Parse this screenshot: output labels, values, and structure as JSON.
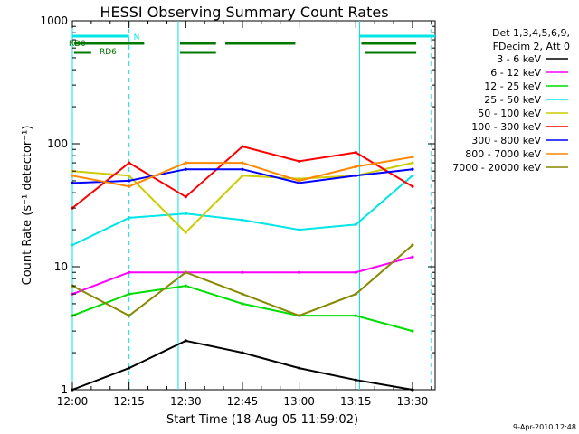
{
  "chart_data": {
    "type": "line",
    "title": "HESSI Observing Summary Count Rates",
    "xlabel": "Start Time (18-Aug-05 11:59:02)",
    "ylabel": "Count Rate (s⁻¹ detector⁻¹)",
    "y_scale": "log",
    "ylim": [
      1,
      1000
    ],
    "xlim": [
      "12:00",
      "13:36"
    ],
    "x_ticks": [
      "12:00",
      "12:15",
      "12:30",
      "12:45",
      "13:00",
      "13:15",
      "13:30"
    ],
    "y_ticks": [
      "1",
      "10",
      "100",
      "1000"
    ],
    "legend_position": "top-right",
    "legend_header": [
      "Det 1,3,4,5,6,9,",
      "FDecim 2, Att 0"
    ],
    "flag_labels": [
      "N",
      "RD0",
      "RD6"
    ],
    "timestamp": "9-Apr-2010 12:48",
    "series": [
      {
        "name": "3 - 6 keV",
        "color": "#000000",
        "x": [
          "12:00",
          "12:15",
          "12:30",
          "12:45",
          "13:00",
          "13:15",
          "13:30"
        ],
        "values": [
          1,
          1.5,
          2.5,
          2,
          1.5,
          1.2,
          1
        ]
      },
      {
        "name": "6 - 12 keV",
        "color": "#ff00ff",
        "x": [
          "12:00",
          "12:15",
          "12:30",
          "12:45",
          "13:00",
          "13:15",
          "13:30"
        ],
        "values": [
          6,
          9,
          9,
          9,
          9,
          9,
          12
        ]
      },
      {
        "name": "12 - 25 keV",
        "color": "#00dd00",
        "x": [
          "12:00",
          "12:15",
          "12:30",
          "12:45",
          "13:00",
          "13:15",
          "13:30"
        ],
        "values": [
          4,
          6,
          7,
          5,
          4,
          4,
          3
        ]
      },
      {
        "name": "25 - 50 keV",
        "color": "#00e5e5",
        "x": [
          "12:00",
          "12:15",
          "12:30",
          "12:45",
          "13:00",
          "13:15",
          "13:30"
        ],
        "values": [
          15,
          25,
          27,
          24,
          20,
          22,
          55
        ]
      },
      {
        "name": "50 - 100 keV",
        "color": "#cccc00",
        "x": [
          "12:00",
          "12:15",
          "12:30",
          "12:45",
          "13:00",
          "13:15",
          "13:30"
        ],
        "values": [
          60,
          55,
          19,
          55,
          52,
          55,
          70
        ]
      },
      {
        "name": "100 - 300 keV",
        "color": "#ff0000",
        "x": [
          "12:00",
          "12:15",
          "12:30",
          "12:45",
          "13:00",
          "13:15",
          "13:30"
        ],
        "values": [
          30,
          70,
          37,
          95,
          72,
          85,
          45
        ]
      },
      {
        "name": "300 - 800 keV",
        "color": "#0000ff",
        "x": [
          "12:00",
          "12:15",
          "12:30",
          "12:45",
          "13:00",
          "13:15",
          "13:30"
        ],
        "values": [
          48,
          50,
          62,
          62,
          48,
          55,
          62
        ]
      },
      {
        "name": "800 - 7000 keV",
        "color": "#ff8800",
        "x": [
          "12:00",
          "12:15",
          "12:30",
          "12:45",
          "13:00",
          "13:15",
          "13:30"
        ],
        "values": [
          55,
          45,
          70,
          70,
          50,
          65,
          78
        ]
      },
      {
        "name": "7000 - 20000 keV",
        "color": "#888800",
        "x": [
          "12:00",
          "12:15",
          "12:30",
          "12:45",
          "13:00",
          "13:15",
          "13:30"
        ],
        "values": [
          7,
          4,
          9,
          6,
          4,
          6,
          15
        ]
      }
    ]
  }
}
